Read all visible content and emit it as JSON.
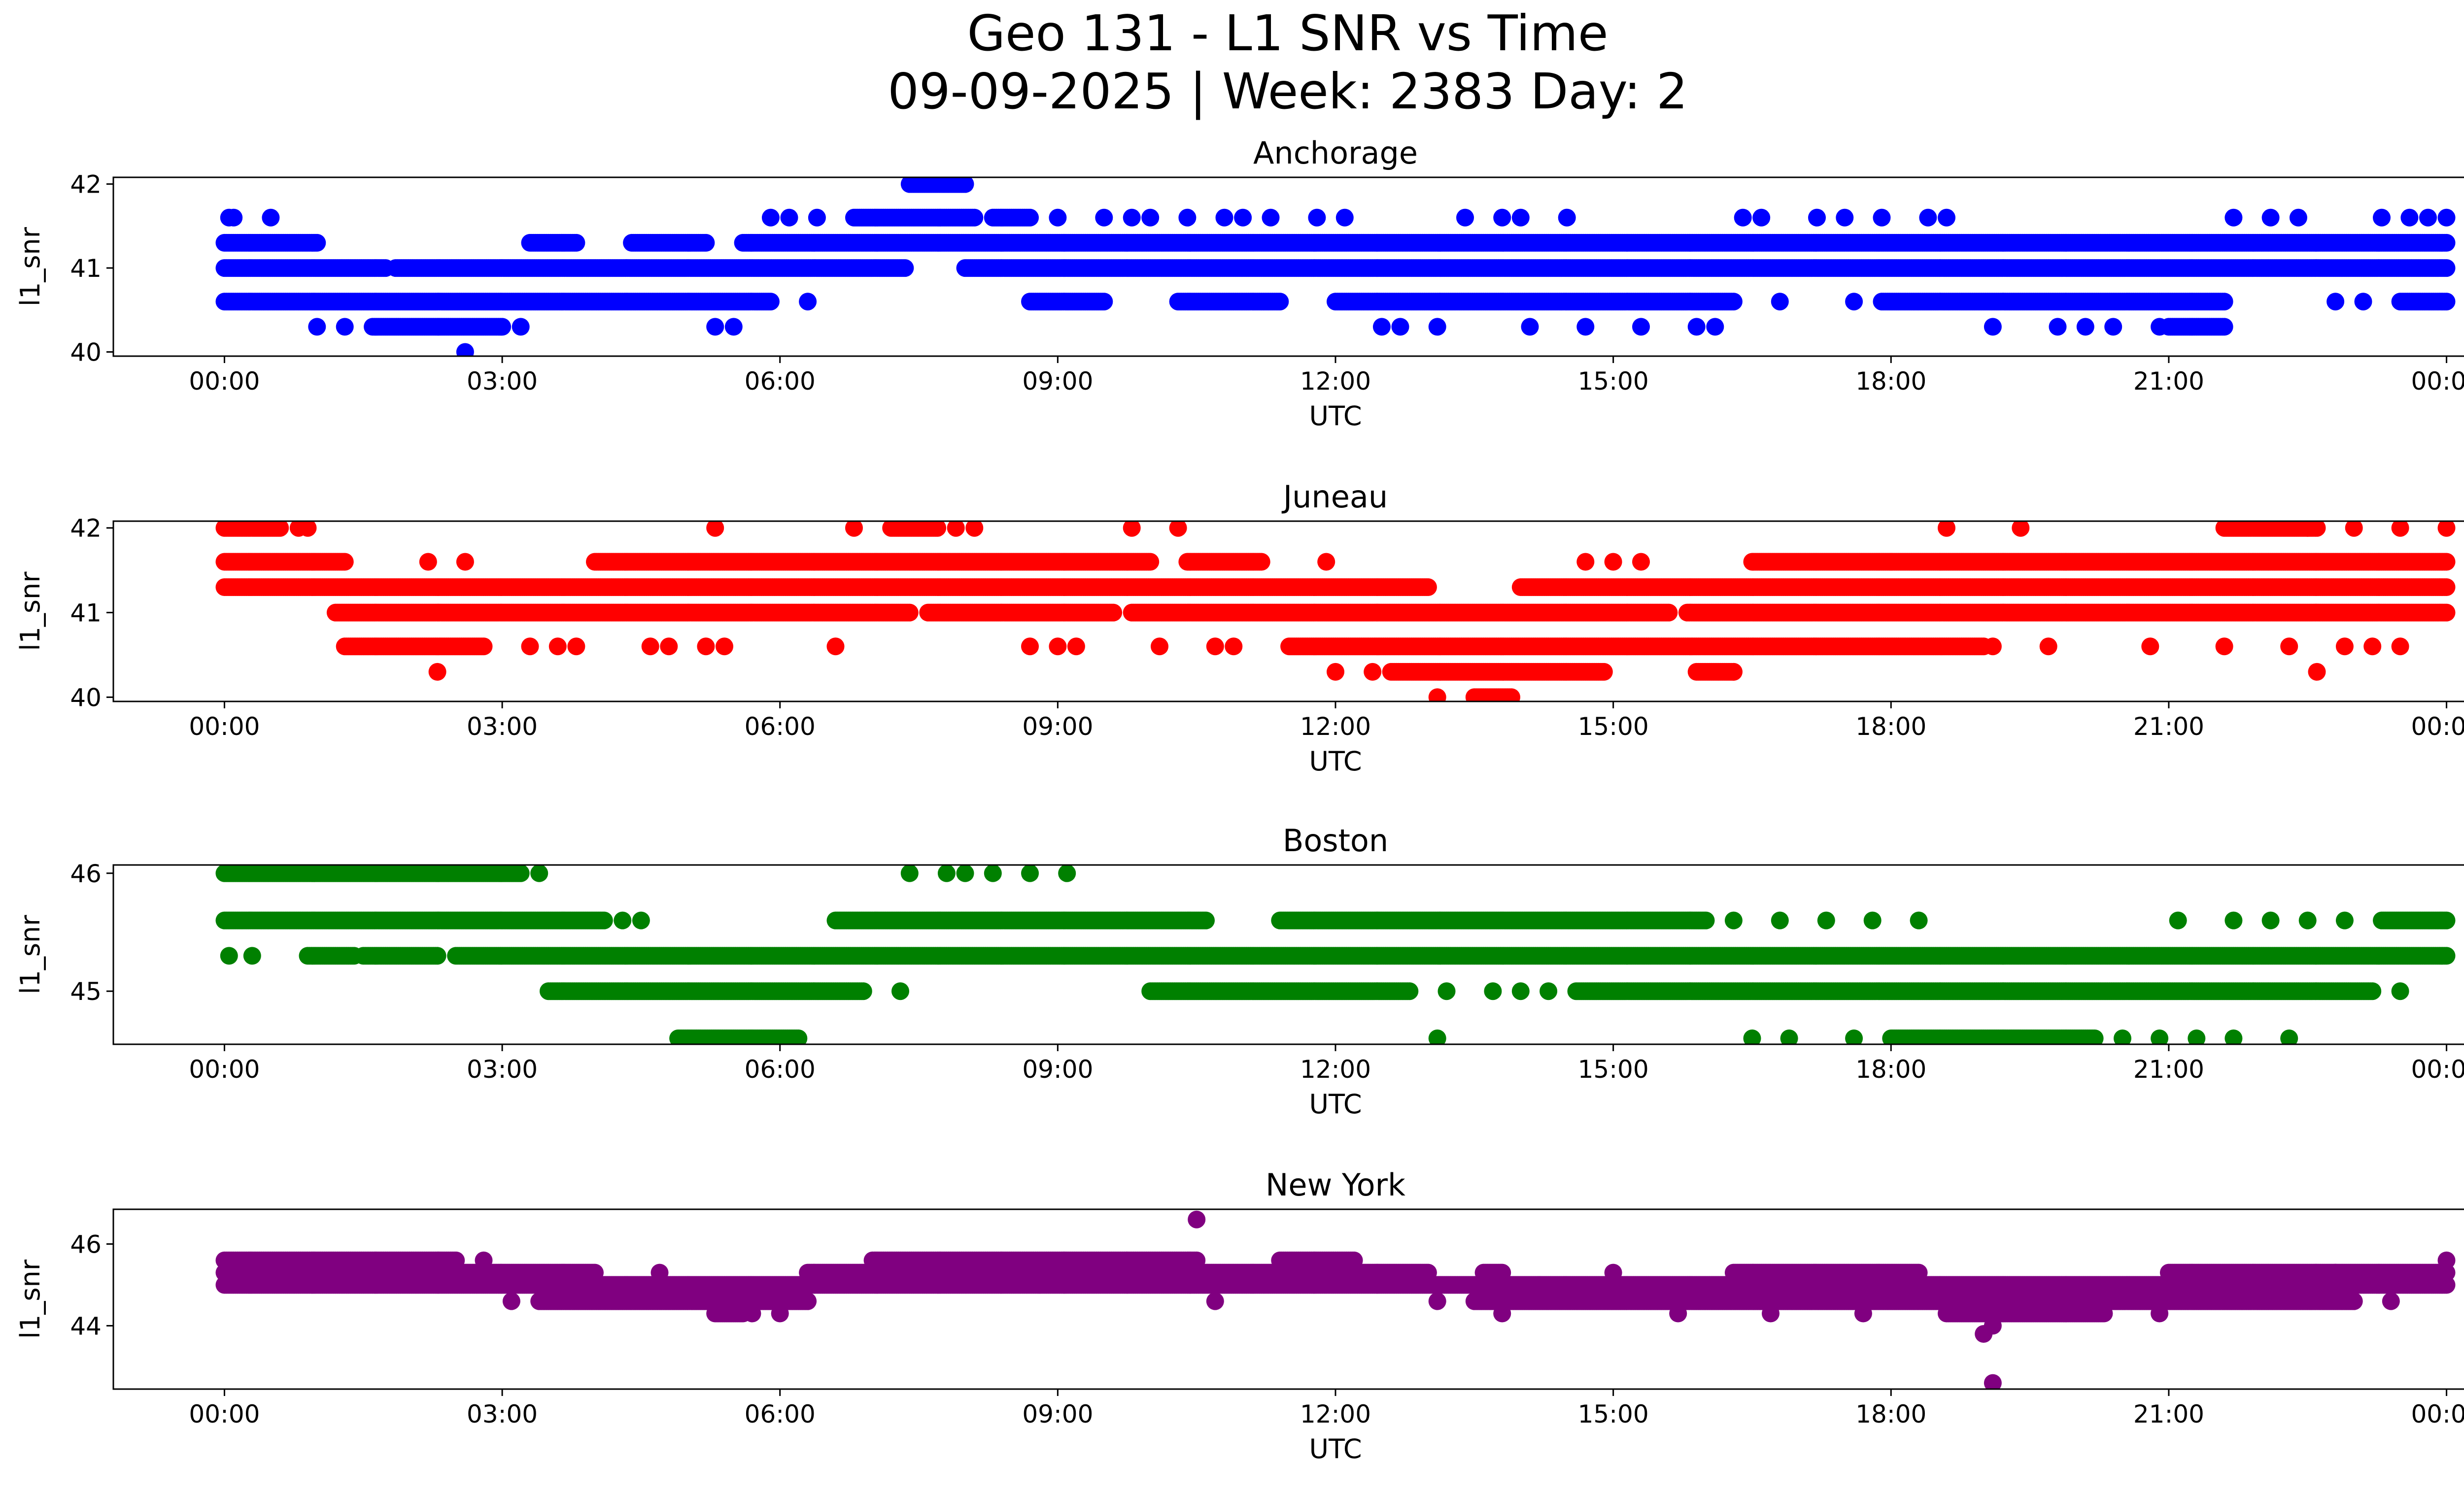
{
  "figure": {
    "title_line1": "Geo 131 - L1 SNR vs Time",
    "title_line2": "09-09-2025 | Week: 2383 Day: 2"
  },
  "chart_data": [
    {
      "type": "scatter",
      "title": "Anchorage",
      "xlabel": "UTC",
      "ylabel": "l1_snr",
      "color": "#0000ff",
      "xlim": [
        -1.2,
        25.2
      ],
      "ylim": [
        39.95,
        42.08
      ],
      "xticks": [
        0,
        3,
        6,
        9,
        12,
        15,
        18,
        21,
        24
      ],
      "xtick_labels": [
        "00:00",
        "03:00",
        "06:00",
        "09:00",
        "12:00",
        "15:00",
        "18:00",
        "21:00",
        "00:00"
      ],
      "yticks": [
        40,
        41,
        42
      ],
      "ytick_labels": [
        "40",
        "41",
        "42"
      ],
      "series": [
        {
          "y": 41.0,
          "segments": [
            [
              0,
              1.75
            ],
            [
              1.85,
              7.35
            ],
            [
              8.0,
              24.0
            ]
          ]
        },
        {
          "y": 41.3,
          "segments": [
            [
              0,
              1.0
            ],
            [
              3.3,
              3.8
            ],
            [
              4.4,
              5.2
            ],
            [
              5.6,
              24.0
            ]
          ]
        },
        {
          "y": 40.6,
          "segments": [
            [
              0,
              5.9
            ],
            [
              8.7,
              9.5
            ],
            [
              10.3,
              11.4
            ],
            [
              12.0,
              16.3
            ],
            [
              17.9,
              21.6
            ],
            [
              23.5,
              24.0
            ]
          ]
        },
        {
          "y": 41.6,
          "segments": [
            [
              6.8,
              8.1
            ],
            [
              8.3,
              8.7
            ]
          ]
        },
        {
          "y": 40.3,
          "segments": [
            [
              1.6,
              3.0
            ],
            [
              21.0,
              21.6
            ]
          ]
        },
        {
          "y": 42.0,
          "segments": [
            [
              7.4,
              8.0
            ]
          ]
        }
      ],
      "points": [
        {
          "x": 0.05,
          "y": 41.6
        },
        {
          "x": 0.1,
          "y": 41.6
        },
        {
          "x": 0.5,
          "y": 41.6
        },
        {
          "x": 1.0,
          "y": 40.3
        },
        {
          "x": 1.3,
          "y": 40.3
        },
        {
          "x": 2.6,
          "y": 40.0
        },
        {
          "x": 3.2,
          "y": 40.3
        },
        {
          "x": 5.3,
          "y": 40.3
        },
        {
          "x": 5.5,
          "y": 40.3
        },
        {
          "x": 5.9,
          "y": 41.6
        },
        {
          "x": 6.1,
          "y": 41.6
        },
        {
          "x": 6.3,
          "y": 40.6
        },
        {
          "x": 6.4,
          "y": 41.6
        },
        {
          "x": 9.0,
          "y": 41.6
        },
        {
          "x": 9.5,
          "y": 41.6
        },
        {
          "x": 9.8,
          "y": 41.6
        },
        {
          "x": 10.0,
          "y": 41.6
        },
        {
          "x": 10.4,
          "y": 41.6
        },
        {
          "x": 10.8,
          "y": 41.6
        },
        {
          "x": 11.0,
          "y": 41.6
        },
        {
          "x": 11.3,
          "y": 41.6
        },
        {
          "x": 11.8,
          "y": 41.6
        },
        {
          "x": 12.1,
          "y": 41.6
        },
        {
          "x": 12.5,
          "y": 40.3
        },
        {
          "x": 12.7,
          "y": 40.3
        },
        {
          "x": 13.1,
          "y": 40.3
        },
        {
          "x": 13.4,
          "y": 41.6
        },
        {
          "x": 13.8,
          "y": 41.6
        },
        {
          "x": 14.0,
          "y": 41.6
        },
        {
          "x": 14.1,
          "y": 40.3
        },
        {
          "x": 14.5,
          "y": 41.6
        },
        {
          "x": 14.7,
          "y": 40.3
        },
        {
          "x": 15.3,
          "y": 40.3
        },
        {
          "x": 15.9,
          "y": 40.3
        },
        {
          "x": 16.1,
          "y": 40.3
        },
        {
          "x": 16.4,
          "y": 41.6
        },
        {
          "x": 16.6,
          "y": 41.6
        },
        {
          "x": 16.8,
          "y": 40.6
        },
        {
          "x": 17.2,
          "y": 41.6
        },
        {
          "x": 17.5,
          "y": 41.6
        },
        {
          "x": 17.6,
          "y": 40.6
        },
        {
          "x": 17.9,
          "y": 41.6
        },
        {
          "x": 18.4,
          "y": 41.6
        },
        {
          "x": 18.6,
          "y": 41.6
        },
        {
          "x": 19.1,
          "y": 40.3
        },
        {
          "x": 19.8,
          "y": 40.3
        },
        {
          "x": 20.1,
          "y": 40.3
        },
        {
          "x": 20.4,
          "y": 40.3
        },
        {
          "x": 20.9,
          "y": 40.3
        },
        {
          "x": 21.7,
          "y": 41.6
        },
        {
          "x": 22.1,
          "y": 41.6
        },
        {
          "x": 22.4,
          "y": 41.6
        },
        {
          "x": 22.8,
          "y": 40.6
        },
        {
          "x": 23.1,
          "y": 40.6
        },
        {
          "x": 23.3,
          "y": 41.6
        },
        {
          "x": 23.6,
          "y": 41.6
        },
        {
          "x": 23.8,
          "y": 41.6
        },
        {
          "x": 24.0,
          "y": 41.6
        }
      ]
    },
    {
      "type": "scatter",
      "title": "Juneau",
      "xlabel": "UTC",
      "ylabel": "l1_snr",
      "color": "#ff0000",
      "xlim": [
        -1.2,
        25.2
      ],
      "ylim": [
        39.95,
        42.08
      ],
      "xticks": [
        0,
        3,
        6,
        9,
        12,
        15,
        18,
        21,
        24
      ],
      "xtick_labels": [
        "00:00",
        "03:00",
        "06:00",
        "09:00",
        "12:00",
        "15:00",
        "18:00",
        "21:00",
        "00:00"
      ],
      "yticks": [
        40,
        41,
        42
      ],
      "ytick_labels": [
        "40",
        "41",
        "42"
      ],
      "series": [
        {
          "y": 42.0,
          "segments": [
            [
              0,
              0.6
            ],
            [
              7.2,
              7.7
            ],
            [
              21.6,
              22.6
            ]
          ]
        },
        {
          "y": 41.6,
          "segments": [
            [
              0,
              1.3
            ],
            [
              4.0,
              10.0
            ],
            [
              10.4,
              11.2
            ],
            [
              16.5,
              18.0
            ],
            [
              18.0,
              24.0
            ]
          ]
        },
        {
          "y": 41.3,
          "segments": [
            [
              0,
              13.0
            ],
            [
              14.0,
              24.0
            ]
          ]
        },
        {
          "y": 41.0,
          "segments": [
            [
              1.2,
              7.4
            ],
            [
              7.6,
              9.6
            ],
            [
              9.8,
              15.6
            ],
            [
              15.8,
              24.0
            ]
          ]
        },
        {
          "y": 40.6,
          "segments": [
            [
              1.3,
              2.8
            ],
            [
              11.5,
              19.0
            ]
          ]
        },
        {
          "y": 40.3,
          "segments": [
            [
              12.6,
              14.9
            ],
            [
              15.9,
              16.3
            ]
          ]
        },
        {
          "y": 40.0,
          "segments": [
            [
              13.5,
              13.9
            ]
          ]
        }
      ],
      "points": [
        {
          "x": 0.8,
          "y": 42.0
        },
        {
          "x": 0.9,
          "y": 42.0
        },
        {
          "x": 5.3,
          "y": 42.0
        },
        {
          "x": 6.8,
          "y": 42.0
        },
        {
          "x": 7.9,
          "y": 42.0
        },
        {
          "x": 8.1,
          "y": 42.0
        },
        {
          "x": 9.8,
          "y": 42.0
        },
        {
          "x": 10.3,
          "y": 42.0
        },
        {
          "x": 11.9,
          "y": 41.6
        },
        {
          "x": 2.3,
          "y": 40.3
        },
        {
          "x": 2.2,
          "y": 41.6
        },
        {
          "x": 2.6,
          "y": 41.6
        },
        {
          "x": 3.3,
          "y": 40.6
        },
        {
          "x": 3.6,
          "y": 40.6
        },
        {
          "x": 3.8,
          "y": 40.6
        },
        {
          "x": 4.6,
          "y": 40.6
        },
        {
          "x": 4.8,
          "y": 40.6
        },
        {
          "x": 5.2,
          "y": 40.6
        },
        {
          "x": 5.4,
          "y": 40.6
        },
        {
          "x": 6.6,
          "y": 40.6
        },
        {
          "x": 8.7,
          "y": 40.6
        },
        {
          "x": 9.0,
          "y": 40.6
        },
        {
          "x": 9.2,
          "y": 40.6
        },
        {
          "x": 10.1,
          "y": 40.6
        },
        {
          "x": 10.7,
          "y": 40.6
        },
        {
          "x": 10.9,
          "y": 40.6
        },
        {
          "x": 12.0,
          "y": 40.3
        },
        {
          "x": 12.4,
          "y": 40.3
        },
        {
          "x": 13.1,
          "y": 40.0
        },
        {
          "x": 14.7,
          "y": 41.6
        },
        {
          "x": 15.0,
          "y": 41.6
        },
        {
          "x": 15.3,
          "y": 41.6
        },
        {
          "x": 16.3,
          "y": 40.3
        },
        {
          "x": 18.6,
          "y": 42.0
        },
        {
          "x": 19.4,
          "y": 42.0
        },
        {
          "x": 19.1,
          "y": 40.6
        },
        {
          "x": 19.7,
          "y": 40.6
        },
        {
          "x": 20.8,
          "y": 40.6
        },
        {
          "x": 21.6,
          "y": 40.6
        },
        {
          "x": 22.3,
          "y": 40.6
        },
        {
          "x": 22.6,
          "y": 40.3
        },
        {
          "x": 22.9,
          "y": 40.6
        },
        {
          "x": 23.2,
          "y": 40.6
        },
        {
          "x": 23.5,
          "y": 40.6
        },
        {
          "x": 22.5,
          "y": 42.0
        },
        {
          "x": 23.0,
          "y": 42.0
        },
        {
          "x": 23.5,
          "y": 42.0
        },
        {
          "x": 24.0,
          "y": 42.0
        }
      ]
    },
    {
      "type": "scatter",
      "title": "Boston",
      "xlabel": "UTC",
      "ylabel": "l1_snr",
      "color": "#008000",
      "xlim": [
        -1.2,
        25.2
      ],
      "ylim": [
        44.55,
        46.07
      ],
      "xticks": [
        0,
        3,
        6,
        9,
        12,
        15,
        18,
        21,
        24
      ],
      "xtick_labels": [
        "00:00",
        "03:00",
        "06:00",
        "09:00",
        "12:00",
        "15:00",
        "18:00",
        "21:00",
        "00:00"
      ],
      "yticks": [
        45,
        46
      ],
      "ytick_labels": [
        "45",
        "46"
      ],
      "series": [
        {
          "y": 46.0,
          "segments": [
            [
              0,
              3.2
            ]
          ]
        },
        {
          "y": 45.6,
          "segments": [
            [
              0,
              4.1
            ],
            [
              6.6,
              10.6
            ],
            [
              11.4,
              16.0
            ],
            [
              23.3,
              24.0
            ]
          ]
        },
        {
          "y": 45.3,
          "segments": [
            [
              0.9,
              1.4
            ],
            [
              1.5,
              2.3
            ],
            [
              2.5,
              24.0
            ]
          ]
        },
        {
          "y": 45.0,
          "segments": [
            [
              3.5,
              6.9
            ],
            [
              10.0,
              12.8
            ],
            [
              14.6,
              23.2
            ]
          ]
        },
        {
          "y": 44.6,
          "segments": [
            [
              4.9,
              6.2
            ],
            [
              18.0,
              20.2
            ]
          ]
        }
      ],
      "points": [
        {
          "x": 0.05,
          "y": 45.3
        },
        {
          "x": 0.3,
          "y": 45.3
        },
        {
          "x": 3.4,
          "y": 46.0
        },
        {
          "x": 7.4,
          "y": 46.0
        },
        {
          "x": 7.8,
          "y": 46.0
        },
        {
          "x": 8.0,
          "y": 46.0
        },
        {
          "x": 8.3,
          "y": 46.0
        },
        {
          "x": 8.7,
          "y": 46.0
        },
        {
          "x": 9.1,
          "y": 46.0
        },
        {
          "x": 4.3,
          "y": 45.6
        },
        {
          "x": 4.5,
          "y": 45.6
        },
        {
          "x": 7.3,
          "y": 45.0
        },
        {
          "x": 13.1,
          "y": 44.6
        },
        {
          "x": 13.2,
          "y": 45.0
        },
        {
          "x": 13.7,
          "y": 45.0
        },
        {
          "x": 14.0,
          "y": 45.0
        },
        {
          "x": 14.3,
          "y": 45.0
        },
        {
          "x": 16.5,
          "y": 44.6
        },
        {
          "x": 16.9,
          "y": 44.6
        },
        {
          "x": 17.6,
          "y": 44.6
        },
        {
          "x": 16.3,
          "y": 45.6
        },
        {
          "x": 16.8,
          "y": 45.6
        },
        {
          "x": 17.3,
          "y": 45.6
        },
        {
          "x": 17.8,
          "y": 45.6
        },
        {
          "x": 18.3,
          "y": 45.6
        },
        {
          "x": 20.5,
          "y": 44.6
        },
        {
          "x": 20.9,
          "y": 44.6
        },
        {
          "x": 21.3,
          "y": 44.6
        },
        {
          "x": 21.7,
          "y": 44.6
        },
        {
          "x": 22.3,
          "y": 44.6
        },
        {
          "x": 21.1,
          "y": 45.6
        },
        {
          "x": 21.7,
          "y": 45.6
        },
        {
          "x": 22.1,
          "y": 45.6
        },
        {
          "x": 22.5,
          "y": 45.6
        },
        {
          "x": 22.9,
          "y": 45.6
        },
        {
          "x": 23.5,
          "y": 45.0
        }
      ]
    },
    {
      "type": "scatter",
      "title": "New York",
      "xlabel": "UTC",
      "ylabel": "l1_snr",
      "color": "#800080",
      "xlim": [
        -1.2,
        25.2
      ],
      "ylim": [
        42.45,
        46.85
      ],
      "xticks": [
        0,
        3,
        6,
        9,
        12,
        15,
        18,
        21,
        24
      ],
      "xtick_labels": [
        "00:00",
        "03:00",
        "06:00",
        "09:00",
        "12:00",
        "15:00",
        "18:00",
        "21:00",
        "00:00"
      ],
      "yticks": [
        44,
        46
      ],
      "ytick_labels": [
        "44",
        "46"
      ],
      "series": [
        {
          "y": 45.6,
          "segments": [
            [
              0,
              2.5
            ],
            [
              7.0,
              10.5
            ],
            [
              11.4,
              12.2
            ]
          ]
        },
        {
          "y": 45.3,
          "segments": [
            [
              0,
              4.0
            ],
            [
              6.3,
              13.0
            ],
            [
              13.6,
              13.8
            ],
            [
              16.3,
              18.3
            ],
            [
              21.0,
              24.0
            ]
          ]
        },
        {
          "y": 45.0,
          "segments": [
            [
              0,
              24.0
            ]
          ]
        },
        {
          "y": 44.6,
          "segments": [
            [
              3.4,
              6.3
            ],
            [
              13.5,
              23.0
            ]
          ]
        },
        {
          "y": 44.3,
          "segments": [
            [
              5.3,
              5.6
            ],
            [
              18.6,
              20.3
            ]
          ]
        }
      ],
      "points": [
        {
          "x": 10.5,
          "y": 46.6
        },
        {
          "x": 10.7,
          "y": 44.6
        },
        {
          "x": 13.1,
          "y": 44.6
        },
        {
          "x": 13.8,
          "y": 44.3
        },
        {
          "x": 5.7,
          "y": 44.3
        },
        {
          "x": 6.0,
          "y": 44.3
        },
        {
          "x": 4.7,
          "y": 45.3
        },
        {
          "x": 2.8,
          "y": 45.6
        },
        {
          "x": 3.1,
          "y": 44.6
        },
        {
          "x": 8.8,
          "y": 45.0
        },
        {
          "x": 15.7,
          "y": 44.3
        },
        {
          "x": 16.7,
          "y": 44.3
        },
        {
          "x": 17.7,
          "y": 44.3
        },
        {
          "x": 19.1,
          "y": 44.0
        },
        {
          "x": 19.1,
          "y": 42.6
        },
        {
          "x": 19.0,
          "y": 43.8
        },
        {
          "x": 20.9,
          "y": 44.3
        },
        {
          "x": 23.4,
          "y": 44.6
        },
        {
          "x": 24.0,
          "y": 45.6
        },
        {
          "x": 22.8,
          "y": 45.3
        },
        {
          "x": 14.2,
          "y": 45.0
        },
        {
          "x": 15.0,
          "y": 45.3
        }
      ]
    }
  ]
}
